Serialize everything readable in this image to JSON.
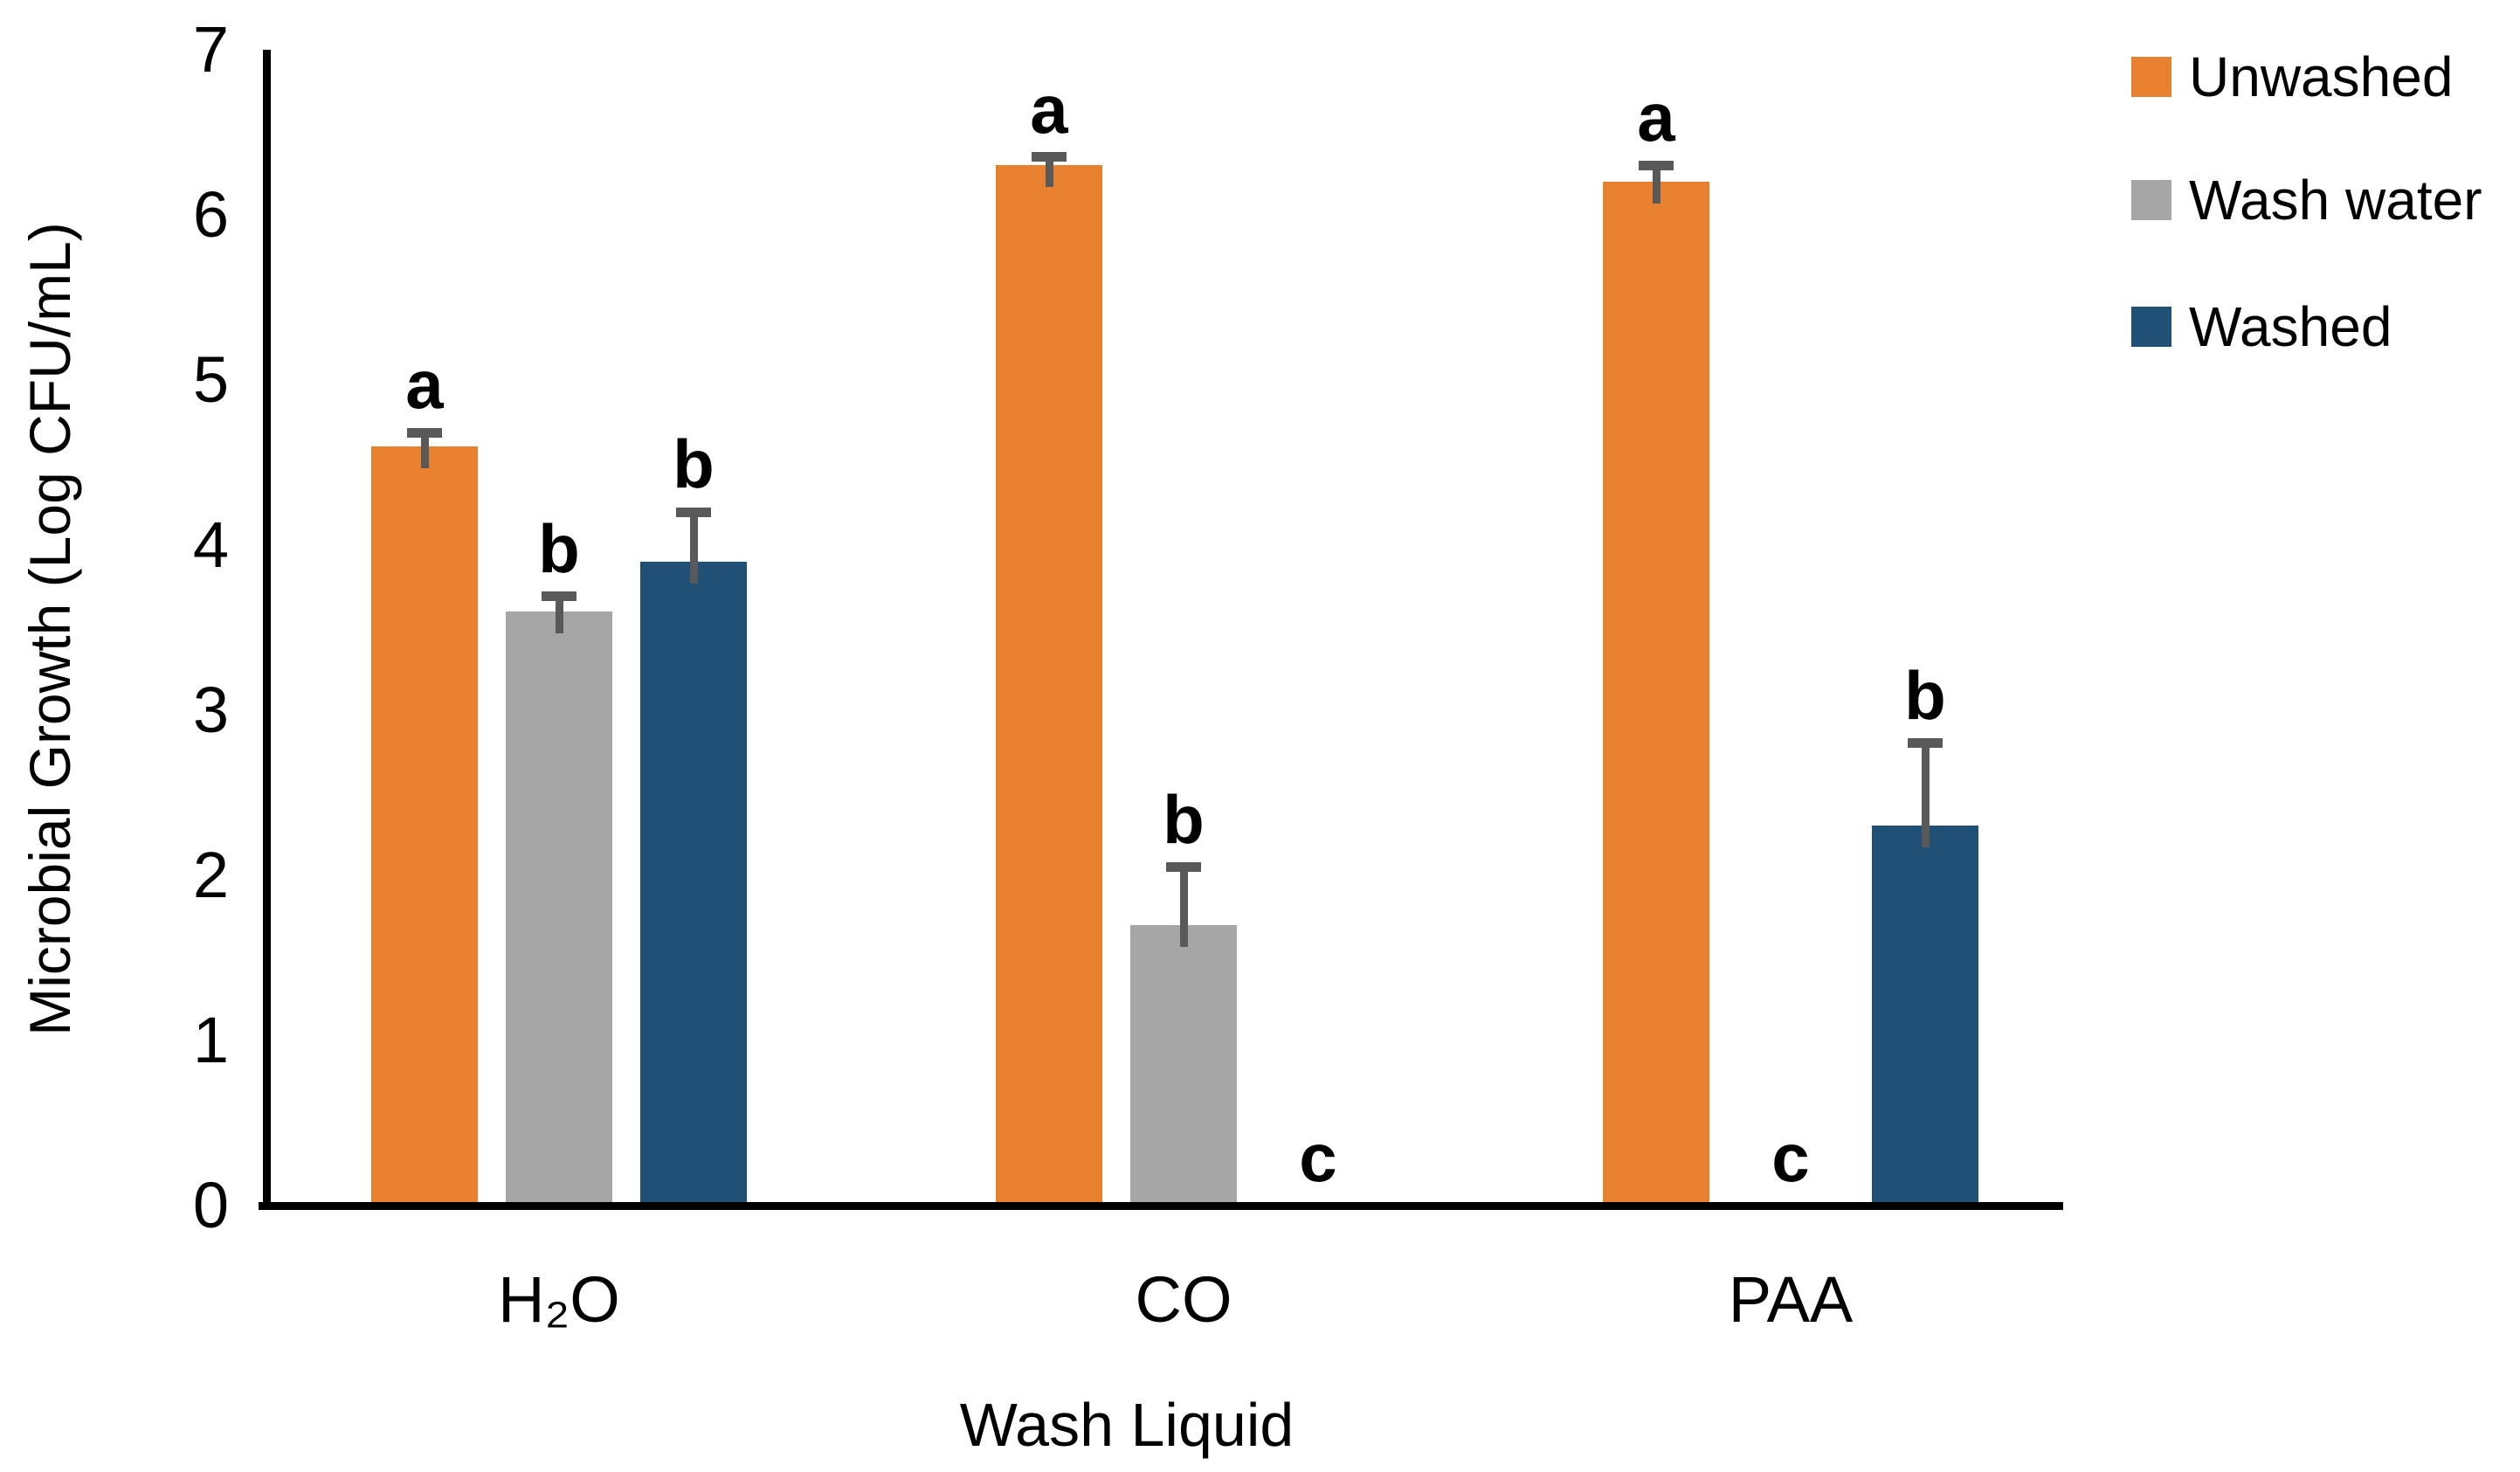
{
  "chart_data": {
    "type": "bar",
    "title": "",
    "xlabel": "Wash Liquid",
    "ylabel": "Microbial Growth (Log CFU/mL)",
    "ylim": [
      0,
      7
    ],
    "yticks": [
      "0",
      "1",
      "2",
      "3",
      "4",
      "5",
      "6",
      "7"
    ],
    "grid": false,
    "legend_position": "top-right",
    "categories": [
      "H₂O",
      "CO",
      "PAA"
    ],
    "series": [
      {
        "name": "Unwashed",
        "color": "#E8812F",
        "values": [
          4.6,
          6.3,
          6.2
        ],
        "errors": [
          0.08,
          0.05,
          0.1
        ],
        "sig_letters": [
          "a",
          "a",
          "a"
        ]
      },
      {
        "name": "Wash water",
        "color": "#A6A6A6",
        "values": [
          3.6,
          1.7,
          0
        ],
        "errors": [
          0.09,
          0.35,
          0
        ],
        "sig_letters": [
          "b",
          "b",
          "c"
        ]
      },
      {
        "name": "Washed",
        "color": "#215077",
        "values": [
          3.9,
          0,
          2.3
        ],
        "errors": [
          0.3,
          0,
          0.5
        ],
        "sig_letters": [
          "b",
          "c",
          "b"
        ]
      }
    ],
    "error_bar_color": "#595959",
    "axis_color": "#000000"
  }
}
